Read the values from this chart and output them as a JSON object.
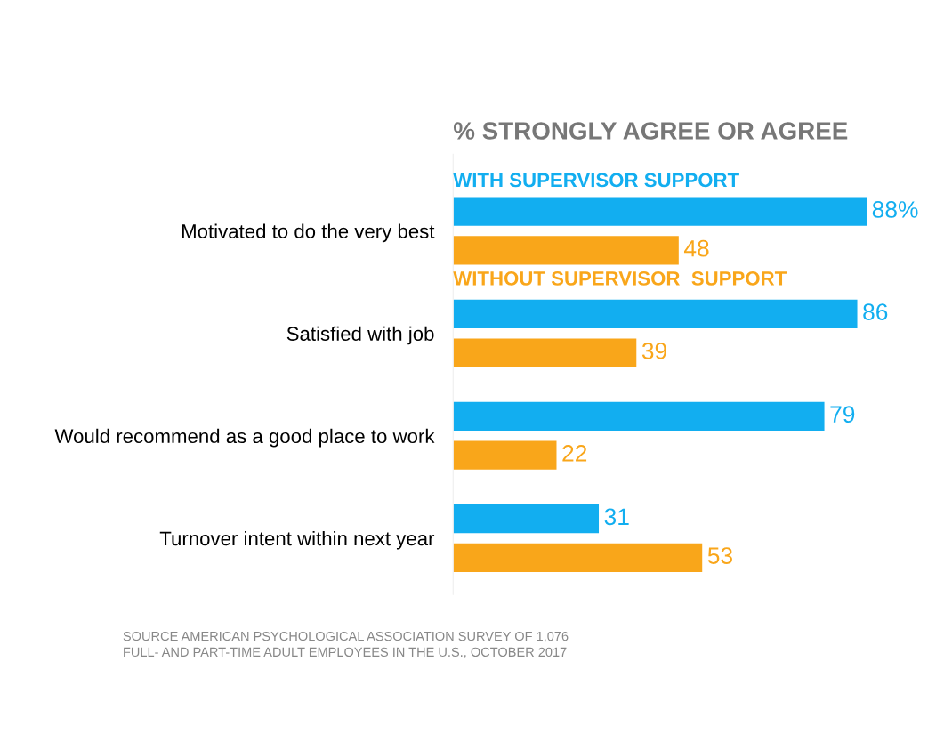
{
  "chart_data": {
    "type": "bar",
    "orientation": "horizontal",
    "title": "% STRONGLY AGREE OR AGREE",
    "categories": [
      "Motivated to do the very best",
      "Satisfied with job",
      "Would recommend as a good place to work",
      "Turnover intent within next year"
    ],
    "series": [
      {
        "name": "WITH SUPERVISOR SUPPORT",
        "color": "#12aef0",
        "values": [
          88,
          86,
          79,
          31
        ],
        "value_labels": [
          "88%",
          "86",
          "79",
          "31"
        ]
      },
      {
        "name": "WITHOUT SUPERVISOR  SUPPORT",
        "color": "#f9a61a",
        "values": [
          48,
          39,
          22,
          53
        ],
        "value_labels": [
          "48",
          "39",
          "22",
          "53"
        ]
      }
    ],
    "tick_labels": "y",
    "grid": false,
    "legend": false,
    "annotations": [
      "SOURCE AMERICAN PSYCHOLOGICAL ASSOCIATION SURVEY OF 1,076\nFULL- AND PART-TIME ADULT EMPLOYEES IN THE U.S., OCTOBER 2017"
    ]
  }
}
